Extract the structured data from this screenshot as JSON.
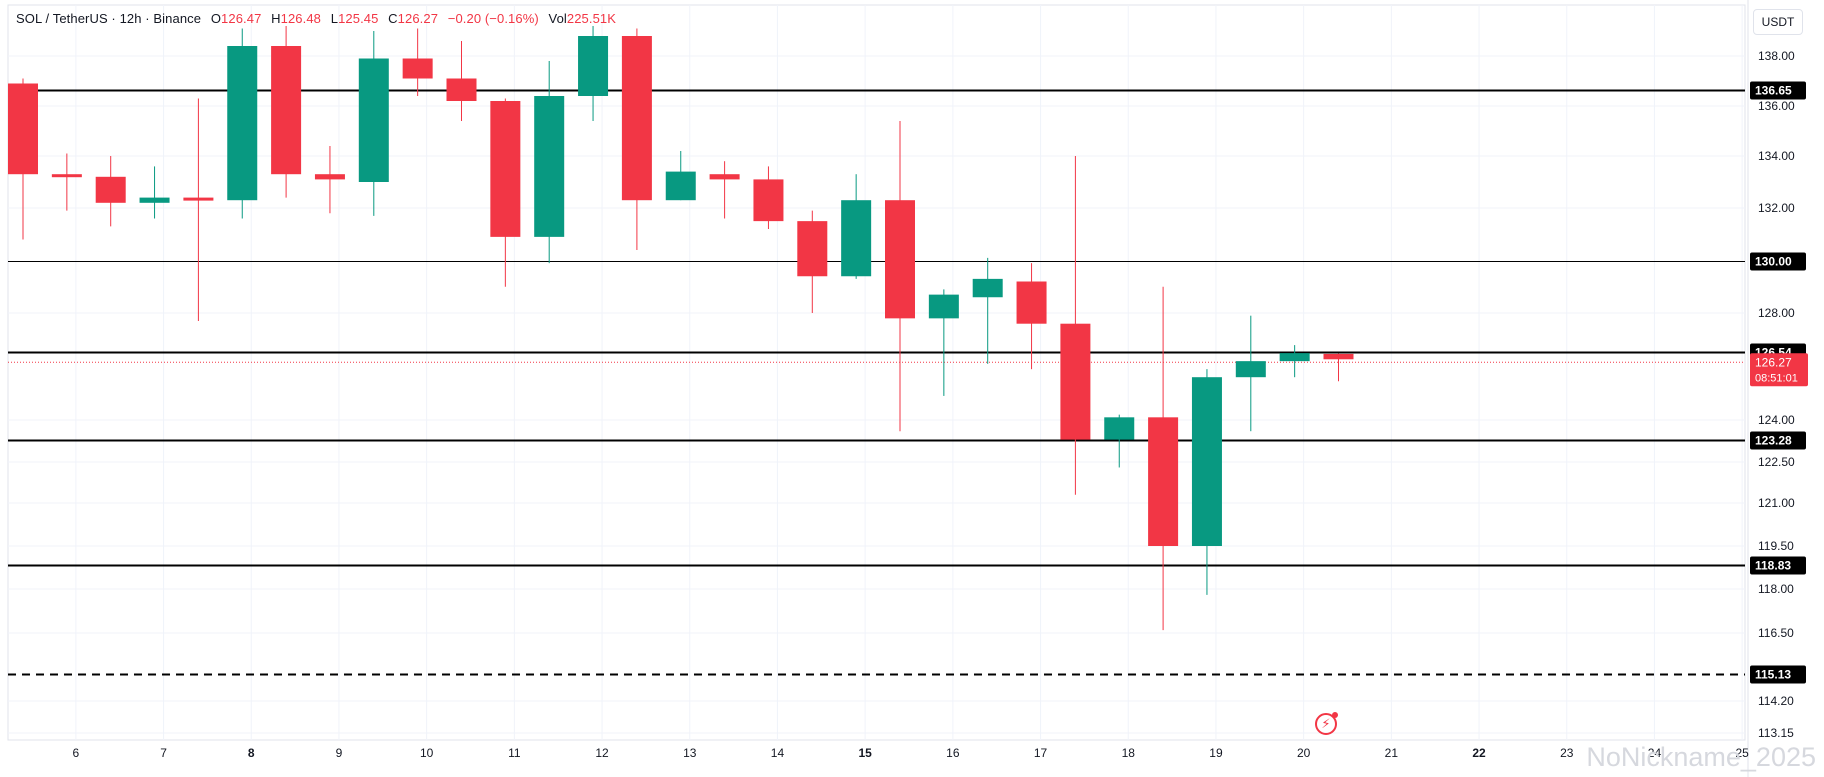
{
  "legend": {
    "symbol": "SOL / TetherUS · 12h · Binance",
    "o_label": "O",
    "o": "126.47",
    "h_label": "H",
    "h": "126.48",
    "l_label": "L",
    "l": "125.45",
    "c_label": "C",
    "c": "126.27",
    "change": "−0.20 (−0.16%)",
    "vol_label": "Vol",
    "vol": "225.51K"
  },
  "currency": "USDT",
  "watermark": "NoNickname_2025",
  "countdown": "08:51:01",
  "colors": {
    "up": "#089981",
    "down": "#f23645",
    "line": "#000000",
    "grid": "#f0f3fa"
  },
  "chart_data": {
    "type": "candlestick",
    "title": "SOL / TetherUS · 12h · Binance",
    "ylim": [
      113.15,
      139.2
    ],
    "y_ticks": [
      113.15,
      114.2,
      116.5,
      118.0,
      119.5,
      121.0,
      122.5,
      124.0,
      128.0,
      132.0,
      134.0,
      136.0,
      138.0
    ],
    "x_ticks": [
      "6",
      "7",
      "8",
      "9",
      "10",
      "11",
      "12",
      "13",
      "14",
      "15",
      "16",
      "17",
      "18",
      "19",
      "20",
      "21",
      "22",
      "23",
      "24",
      "25"
    ],
    "bold_ticks": [
      "8",
      "15",
      "22"
    ],
    "grid": true,
    "candles": [
      {
        "o": 136.9,
        "h": 137.1,
        "l": 130.8,
        "c": 133.3
      },
      {
        "o": 133.3,
        "h": 134.1,
        "l": 131.9,
        "c": 133.2
      },
      {
        "o": 133.2,
        "h": 134.0,
        "l": 131.3,
        "c": 132.2
      },
      {
        "o": 132.2,
        "h": 133.6,
        "l": 131.6,
        "c": 132.4
      },
      {
        "o": 132.4,
        "h": 136.3,
        "l": 127.7,
        "c": 132.3
      },
      {
        "o": 132.3,
        "h": 139.1,
        "l": 131.6,
        "c": 138.4
      },
      {
        "o": 138.4,
        "h": 139.2,
        "l": 132.4,
        "c": 133.3
      },
      {
        "o": 133.3,
        "h": 134.4,
        "l": 131.8,
        "c": 133.1
      },
      {
        "o": 133.0,
        "h": 139.0,
        "l": 131.7,
        "c": 137.9
      },
      {
        "o": 137.9,
        "h": 139.1,
        "l": 136.4,
        "c": 137.1
      },
      {
        "o": 137.1,
        "h": 138.6,
        "l": 135.4,
        "c": 136.2
      },
      {
        "o": 136.2,
        "h": 136.3,
        "l": 129.0,
        "c": 130.9
      },
      {
        "o": 130.9,
        "h": 137.8,
        "l": 129.9,
        "c": 136.4
      },
      {
        "o": 136.4,
        "h": 139.2,
        "l": 135.4,
        "c": 138.8
      },
      {
        "o": 138.8,
        "h": 139.1,
        "l": 130.4,
        "c": 132.3
      },
      {
        "o": 132.3,
        "h": 134.2,
        "l": 132.3,
        "c": 133.4
      },
      {
        "o": 133.3,
        "h": 133.8,
        "l": 131.6,
        "c": 133.1
      },
      {
        "o": 133.1,
        "h": 133.6,
        "l": 131.2,
        "c": 131.5
      },
      {
        "o": 131.5,
        "h": 131.9,
        "l": 128.0,
        "c": 129.4
      },
      {
        "o": 129.4,
        "h": 133.3,
        "l": 129.3,
        "c": 132.3
      },
      {
        "o": 132.3,
        "h": 135.4,
        "l": 123.6,
        "c": 127.8
      },
      {
        "o": 127.8,
        "h": 128.9,
        "l": 124.9,
        "c": 128.7
      },
      {
        "o": 128.6,
        "h": 130.1,
        "l": 126.1,
        "c": 129.3
      },
      {
        "o": 129.2,
        "h": 129.9,
        "l": 125.9,
        "c": 127.6
      },
      {
        "o": 127.6,
        "h": 134.0,
        "l": 121.3,
        "c": 123.3
      },
      {
        "o": 123.3,
        "h": 124.2,
        "l": 122.3,
        "c": 124.1
      },
      {
        "o": 124.1,
        "h": 129.0,
        "l": 116.6,
        "c": 119.5
      },
      {
        "o": 119.5,
        "h": 125.9,
        "l": 117.8,
        "c": 125.6
      },
      {
        "o": 125.6,
        "h": 127.9,
        "l": 123.6,
        "c": 126.2
      },
      {
        "o": 126.2,
        "h": 126.8,
        "l": 125.6,
        "c": 126.5
      },
      {
        "o": 126.47,
        "h": 126.48,
        "l": 125.45,
        "c": 126.27
      }
    ],
    "horizontal_lines": [
      {
        "value": 136.65,
        "label": "136.65",
        "width": 2,
        "dashed": false
      },
      {
        "value": 130.0,
        "label": "130.00",
        "width": 1,
        "dashed": false
      },
      {
        "value": 126.54,
        "label": "126.54",
        "width": 2,
        "dashed": false
      },
      {
        "value": 123.28,
        "label": "123.28",
        "width": 2,
        "dashed": false
      },
      {
        "value": 118.83,
        "label": "118.83",
        "width": 2,
        "dashed": false
      },
      {
        "value": 115.13,
        "label": "115.13",
        "width": 2,
        "dashed": true
      }
    ],
    "last_price": 126.27
  }
}
